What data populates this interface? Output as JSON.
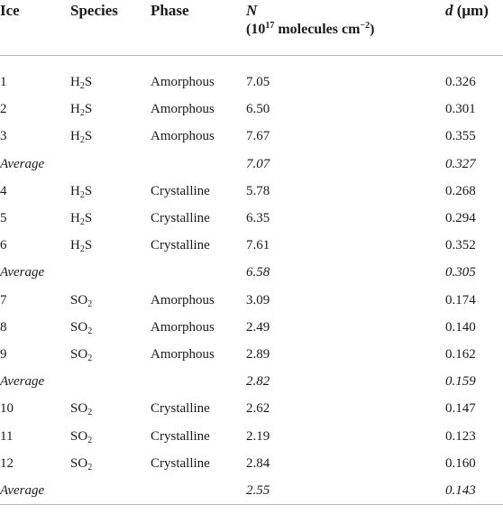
{
  "header": {
    "ice": "Ice",
    "species": "Species",
    "phase": "Phase",
    "n_symbol": "N",
    "n_unit_prefix": "(10",
    "n_unit_exp": "17",
    "n_unit_mid": " molecules cm",
    "n_unit_exp2": "−2",
    "n_unit_suffix": ")",
    "d_symbol": "d",
    "d_unit": " (μm)"
  },
  "rows": [
    {
      "ice": "1",
      "species_base": "H",
      "species_sub": "2",
      "species_rest": "S",
      "phase": "Amorphous",
      "n": "7.05",
      "d": "0.326",
      "average": false
    },
    {
      "ice": "2",
      "species_base": "H",
      "species_sub": "2",
      "species_rest": "S",
      "phase": "Amorphous",
      "n": "6.50",
      "d": "0.301",
      "average": false
    },
    {
      "ice": "3",
      "species_base": "H",
      "species_sub": "2",
      "species_rest": "S",
      "phase": "Amorphous",
      "n": "7.67",
      "d": "0.355",
      "average": false
    },
    {
      "ice": "Average",
      "species_base": "",
      "species_sub": "",
      "species_rest": "",
      "phase": "",
      "n": "7.07",
      "d": "0.327",
      "average": true
    },
    {
      "ice": "4",
      "species_base": "H",
      "species_sub": "2",
      "species_rest": "S",
      "phase": "Crystalline",
      "n": "5.78",
      "d": "0.268",
      "average": false
    },
    {
      "ice": "5",
      "species_base": "H",
      "species_sub": "2",
      "species_rest": "S",
      "phase": "Crystalline",
      "n": "6.35",
      "d": "0.294",
      "average": false
    },
    {
      "ice": "6",
      "species_base": "H",
      "species_sub": "2",
      "species_rest": "S",
      "phase": "Crystalline",
      "n": "7.61",
      "d": "0.352",
      "average": false
    },
    {
      "ice": "Average",
      "species_base": "",
      "species_sub": "",
      "species_rest": "",
      "phase": "",
      "n": "6.58",
      "d": "0.305",
      "average": true
    },
    {
      "ice": "7",
      "species_base": "SO",
      "species_sub": "2",
      "species_rest": "",
      "phase": "Amorphous",
      "n": "3.09",
      "d": "0.174",
      "average": false
    },
    {
      "ice": "8",
      "species_base": "SO",
      "species_sub": "2",
      "species_rest": "",
      "phase": "Amorphous",
      "n": "2.49",
      "d": "0.140",
      "average": false
    },
    {
      "ice": "9",
      "species_base": "SO",
      "species_sub": "2",
      "species_rest": "",
      "phase": "Amorphous",
      "n": "2.89",
      "d": "0.162",
      "average": false
    },
    {
      "ice": "Average",
      "species_base": "",
      "species_sub": "",
      "species_rest": "",
      "phase": "",
      "n": "2.82",
      "d": "0.159",
      "average": true
    },
    {
      "ice": "10",
      "species_base": "SO",
      "species_sub": "2",
      "species_rest": "",
      "phase": "Crystalline",
      "n": "2.62",
      "d": "0.147",
      "average": false
    },
    {
      "ice": "11",
      "species_base": "SO",
      "species_sub": "2",
      "species_rest": "",
      "phase": "Crystalline",
      "n": "2.19",
      "d": "0.123",
      "average": false
    },
    {
      "ice": "12",
      "species_base": "SO",
      "species_sub": "2",
      "species_rest": "",
      "phase": "Crystalline",
      "n": "2.84",
      "d": "0.160",
      "average": false
    },
    {
      "ice": "Average",
      "species_base": "",
      "species_sub": "",
      "species_rest": "",
      "phase": "",
      "n": "2.55",
      "d": "0.143",
      "average": true
    }
  ]
}
